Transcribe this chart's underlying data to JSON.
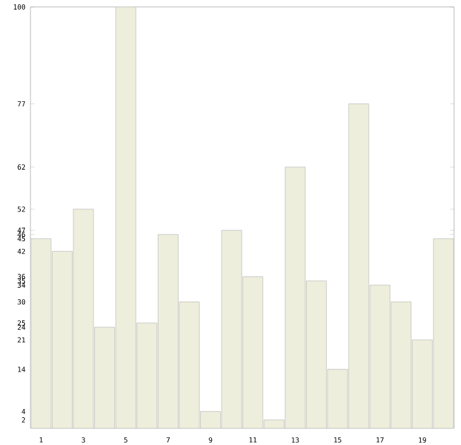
{
  "chart_data": {
    "type": "bar",
    "categories": [
      "1",
      null,
      "3",
      null,
      "5",
      null,
      "7",
      null,
      "9",
      null,
      "11",
      null,
      "13",
      null,
      "15",
      null,
      "17",
      null,
      "19",
      null
    ],
    "values": [
      45,
      42,
      52,
      24,
      100,
      25,
      46,
      30,
      4,
      47,
      36,
      2,
      62,
      35,
      14,
      77,
      34,
      30,
      21,
      45
    ],
    "color": "#eeeedc",
    "ylim": [
      0,
      100
    ],
    "yticks": [
      2,
      4,
      14,
      21,
      24,
      25,
      30,
      34,
      35,
      36,
      42,
      45,
      46,
      47,
      52,
      62,
      77,
      100
    ]
  }
}
